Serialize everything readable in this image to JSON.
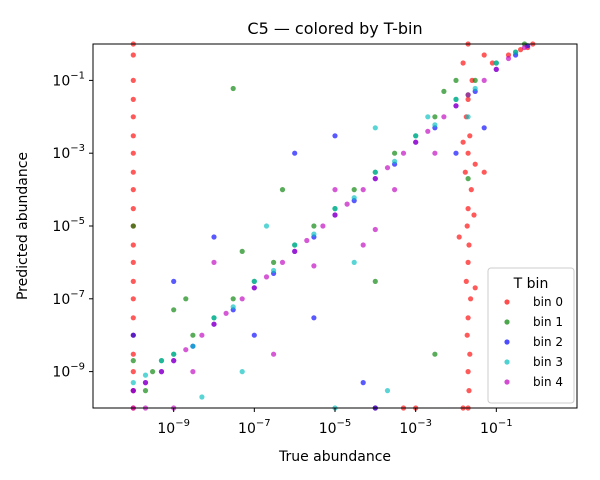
{
  "chart_data": {
    "type": "scatter",
    "title": "C5 — colored by T-bin",
    "xlabel": "True abundance",
    "ylabel": "Predicted abundance",
    "xscale": "log",
    "yscale": "log",
    "xlim": [
      1e-11,
      10
    ],
    "ylim": [
      1e-10,
      1
    ],
    "xticks": [
      {
        "value": 1e-09,
        "label": "10^-9"
      },
      {
        "value": 1e-07,
        "label": "10^-7"
      },
      {
        "value": 1e-05,
        "label": "10^-5"
      },
      {
        "value": 0.001,
        "label": "10^-3"
      },
      {
        "value": 0.1,
        "label": "10^-1"
      }
    ],
    "yticks": [
      {
        "value": 1e-09,
        "label": "10^-9"
      },
      {
        "value": 1e-07,
        "label": "10^-7"
      },
      {
        "value": 1e-05,
        "label": "10^-5"
      },
      {
        "value": 0.001,
        "label": "10^-3"
      },
      {
        "value": 0.1,
        "label": "10^-1"
      }
    ],
    "grid": false,
    "legend": {
      "title": "T bin",
      "placement": "lower-right"
    },
    "series": [
      {
        "name": "bin 0",
        "color": "#ff0000",
        "points": [
          [
            1e-10,
            1
          ],
          [
            1e-10,
            0.5
          ],
          [
            1e-10,
            0.1
          ],
          [
            1e-10,
            0.03
          ],
          [
            1e-10,
            0.01
          ],
          [
            1e-10,
            0.003
          ],
          [
            1e-10,
            0.001
          ],
          [
            1e-10,
            0.0003
          ],
          [
            1e-10,
            0.0001
          ],
          [
            1e-10,
            3e-05
          ],
          [
            1e-10,
            1e-05
          ],
          [
            1e-10,
            3e-06
          ],
          [
            1e-10,
            1e-06
          ],
          [
            1e-10,
            3e-07
          ],
          [
            1e-10,
            1e-07
          ],
          [
            1e-10,
            3e-08
          ],
          [
            1e-10,
            1e-08
          ],
          [
            1e-10,
            3e-09
          ],
          [
            1e-10,
            1e-09
          ],
          [
            1e-10,
            3e-10
          ],
          [
            1e-10,
            1e-10
          ],
          [
            0.02,
            1
          ],
          [
            0.015,
            0.3
          ],
          [
            0.025,
            0.1
          ],
          [
            0.02,
            0.03
          ],
          [
            0.018,
            0.01
          ],
          [
            0.022,
            0.003
          ],
          [
            0.02,
            0.001
          ],
          [
            0.017,
            0.0003
          ],
          [
            0.024,
            0.0001
          ],
          [
            0.02,
            3e-05
          ],
          [
            0.019,
            1e-05
          ],
          [
            0.021,
            3e-06
          ],
          [
            0.02,
            1e-06
          ],
          [
            0.018,
            3e-07
          ],
          [
            0.023,
            1e-07
          ],
          [
            0.02,
            3e-08
          ],
          [
            0.019,
            1e-08
          ],
          [
            0.022,
            3e-09
          ],
          [
            0.02,
            1e-09
          ],
          [
            0.021,
            3e-10
          ],
          [
            0.02,
            1e-10
          ],
          [
            0.015,
            0.002
          ],
          [
            0.03,
            0.0005
          ],
          [
            0.012,
            5e-06
          ],
          [
            0.028,
            2e-05
          ],
          [
            0.05,
            0.5
          ],
          [
            0.2,
            0.5
          ],
          [
            0.4,
            0.7
          ],
          [
            0.6,
            0.8
          ],
          [
            0.8,
            1
          ],
          [
            0.08,
            0.3
          ],
          [
            0.015,
            1e-10
          ],
          [
            0.001,
            1e-10
          ],
          [
            0.0001,
            1e-10
          ],
          [
            0.0005,
            1e-10
          ],
          [
            0.05,
            0.0003
          ],
          [
            0.03,
            2e-07
          ]
        ]
      },
      {
        "name": "bin 1",
        "color": "#008000",
        "points": [
          [
            1e-10,
            1e-05
          ],
          [
            1e-10,
            2e-09
          ],
          [
            2e-10,
            3e-10
          ],
          [
            3e-10,
            1e-09
          ],
          [
            5e-10,
            2e-09
          ],
          [
            1e-09,
            3e-09
          ],
          [
            3e-09,
            1e-08
          ],
          [
            1e-08,
            3e-08
          ],
          [
            3e-08,
            1e-07
          ],
          [
            1e-07,
            3e-07
          ],
          [
            3e-07,
            1e-06
          ],
          [
            1e-06,
            3e-06
          ],
          [
            3e-06,
            1e-05
          ],
          [
            1e-05,
            3e-05
          ],
          [
            3e-05,
            0.0001
          ],
          [
            0.0001,
            0.0003
          ],
          [
            0.0003,
            0.001
          ],
          [
            0.001,
            0.003
          ],
          [
            0.003,
            0.01
          ],
          [
            0.01,
            0.03
          ],
          [
            0.03,
            0.1
          ],
          [
            0.1,
            0.3
          ],
          [
            0.3,
            0.6
          ],
          [
            0.5,
            1
          ],
          [
            3e-08,
            0.06
          ],
          [
            2e-09,
            1e-07
          ],
          [
            5e-08,
            2e-06
          ],
          [
            0.0001,
            3e-07
          ],
          [
            0.005,
            0.05
          ],
          [
            0.02,
            0.04
          ],
          [
            0.01,
            0.1
          ],
          [
            1e-09,
            5e-08
          ],
          [
            5e-07,
            0.0001
          ],
          [
            0.003,
            3e-09
          ],
          [
            0.02,
            0.0002
          ]
        ]
      },
      {
        "name": "bin 2",
        "color": "#0000ff",
        "points": [
          [
            1e-10,
            1e-08
          ],
          [
            1e-10,
            3e-10
          ],
          [
            2e-10,
            5e-10
          ],
          [
            5e-10,
            1e-09
          ],
          [
            1e-09,
            2e-09
          ],
          [
            3e-09,
            5e-09
          ],
          [
            1e-08,
            2e-08
          ],
          [
            3e-08,
            5e-08
          ],
          [
            1e-07,
            2e-07
          ],
          [
            3e-07,
            5e-07
          ],
          [
            1e-06,
            2e-06
          ],
          [
            3e-06,
            5e-06
          ],
          [
            1e-05,
            2e-05
          ],
          [
            3e-05,
            5e-05
          ],
          [
            0.0001,
            0.0002
          ],
          [
            0.0003,
            0.0005
          ],
          [
            0.001,
            0.002
          ],
          [
            0.003,
            0.005
          ],
          [
            0.01,
            0.02
          ],
          [
            0.03,
            0.05
          ],
          [
            0.1,
            0.2
          ],
          [
            0.3,
            0.5
          ],
          [
            0.6,
            0.9
          ],
          [
            1e-08,
            5e-06
          ],
          [
            1e-07,
            1e-08
          ],
          [
            1e-06,
            0.001
          ],
          [
            1e-05,
            0.003
          ],
          [
            5e-05,
            5e-10
          ],
          [
            0.0001,
            1e-10
          ],
          [
            3e-06,
            3e-08
          ],
          [
            0.01,
            0.001
          ],
          [
            0.05,
            0.005
          ],
          [
            1e-09,
            3e-07
          ]
        ]
      },
      {
        "name": "bin 3",
        "color": "#00bfbf",
        "points": [
          [
            1e-10,
            5e-10
          ],
          [
            2e-10,
            8e-10
          ],
          [
            5e-10,
            2e-09
          ],
          [
            1e-09,
            3e-09
          ],
          [
            3e-09,
            5e-09
          ],
          [
            1e-08,
            3e-08
          ],
          [
            3e-08,
            6e-08
          ],
          [
            1e-07,
            3e-07
          ],
          [
            3e-07,
            6e-07
          ],
          [
            1e-06,
            3e-06
          ],
          [
            3e-06,
            6e-06
          ],
          [
            1e-05,
            3e-05
          ],
          [
            3e-05,
            6e-05
          ],
          [
            0.0001,
            0.0003
          ],
          [
            0.0003,
            0.0006
          ],
          [
            0.001,
            0.003
          ],
          [
            0.003,
            0.006
          ],
          [
            0.01,
            0.03
          ],
          [
            0.03,
            0.06
          ],
          [
            0.1,
            0.3
          ],
          [
            0.3,
            0.6
          ],
          [
            5e-08,
            1e-09
          ],
          [
            2e-07,
            1e-05
          ],
          [
            3e-05,
            1e-06
          ],
          [
            0.0001,
            0.005
          ],
          [
            0.002,
            0.01
          ],
          [
            0.02,
            0.01
          ],
          [
            0.0002,
            3e-10
          ],
          [
            1e-05,
            1e-10
          ],
          [
            5e-09,
            2e-10
          ]
        ]
      },
      {
        "name": "bin 4",
        "color": "#bf00bf",
        "points": [
          [
            1e-10,
            1e-10
          ],
          [
            1e-10,
            3e-10
          ],
          [
            2e-10,
            1e-10
          ],
          [
            2e-10,
            5e-10
          ],
          [
            5e-10,
            1e-09
          ],
          [
            1e-09,
            2e-09
          ],
          [
            2e-09,
            4e-09
          ],
          [
            5e-09,
            1e-08
          ],
          [
            1e-08,
            2e-08
          ],
          [
            2e-08,
            4e-08
          ],
          [
            5e-08,
            1e-07
          ],
          [
            1e-07,
            2e-07
          ],
          [
            2e-07,
            4e-07
          ],
          [
            5e-07,
            1e-06
          ],
          [
            1e-06,
            2e-06
          ],
          [
            2e-06,
            4e-06
          ],
          [
            5e-06,
            1e-05
          ],
          [
            1e-05,
            2e-05
          ],
          [
            2e-05,
            4e-05
          ],
          [
            5e-05,
            0.0001
          ],
          [
            0.0001,
            0.0002
          ],
          [
            0.0002,
            0.0004
          ],
          [
            0.0005,
            0.001
          ],
          [
            0.001,
            0.002
          ],
          [
            0.002,
            0.004
          ],
          [
            0.005,
            0.01
          ],
          [
            0.01,
            0.02
          ],
          [
            0.02,
            0.04
          ],
          [
            0.05,
            0.1
          ],
          [
            0.1,
            0.2
          ],
          [
            0.2,
            0.4
          ],
          [
            0.5,
            0.8
          ],
          [
            1e-08,
            1e-06
          ],
          [
            3e-07,
            3e-09
          ],
          [
            1e-05,
            0.0001
          ],
          [
            5e-05,
            3e-06
          ],
          [
            0.0003,
            0.0001
          ],
          [
            0.003,
            0.001
          ],
          [
            1e-09,
            1e-10
          ],
          [
            3e-09,
            1e-09
          ],
          [
            3e-06,
            8e-07
          ],
          [
            0.0001,
            8e-06
          ]
        ]
      }
    ]
  }
}
